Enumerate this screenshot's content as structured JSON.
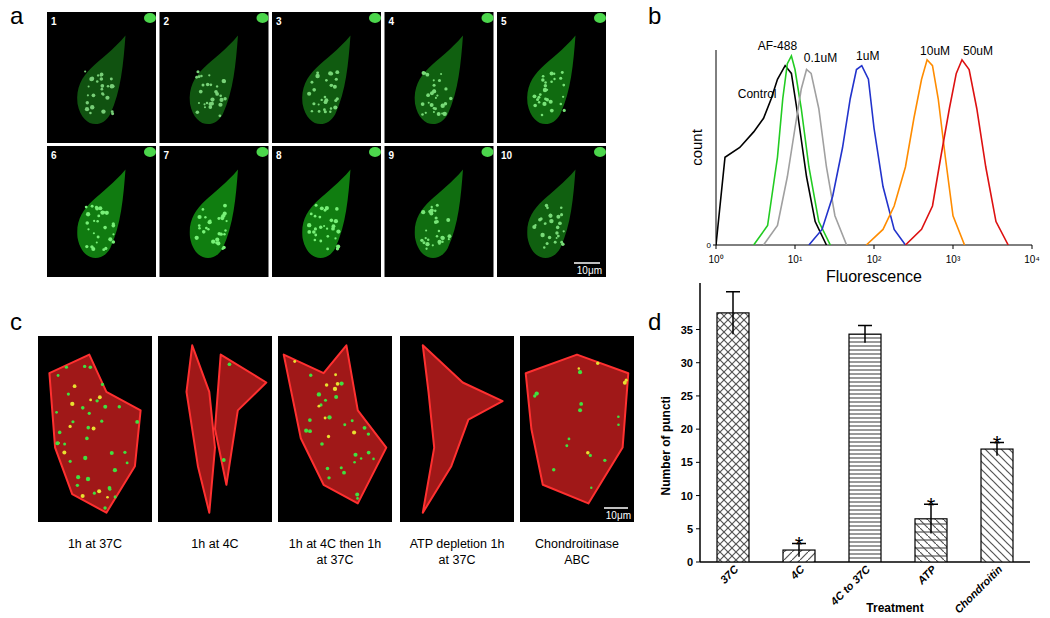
{
  "figure": {
    "panel_labels": [
      "a",
      "b",
      "c",
      "d"
    ]
  },
  "panel_a": {
    "frames": [
      "1",
      "2",
      "3",
      "4",
      "5",
      "6",
      "7",
      "8",
      "9",
      "10"
    ],
    "scale_bar": "10μm"
  },
  "panel_c": {
    "captions": [
      [
        "1h at 37C"
      ],
      [
        "1h at 4C"
      ],
      [
        "1h at 4C then 1h",
        "at 37C"
      ],
      [
        "ATP depletion 1h",
        "at 37C"
      ],
      [
        "Chondroitinase",
        "ABC"
      ]
    ],
    "scale_bar": "10μm"
  },
  "chart_data": [
    {
      "type": "line",
      "x_label": "Fluorescence",
      "y_label": "count",
      "log": "x",
      "xlim": [
        1,
        10000
      ],
      "xticks": [
        {
          "value": 1,
          "label": "10⁰"
        },
        {
          "value": 10,
          "label": "10¹"
        },
        {
          "value": 100,
          "label": "10²"
        },
        {
          "value": 1000,
          "label": "10³"
        },
        {
          "value": 10000,
          "label": "10⁴"
        }
      ],
      "ylim": [
        0,
        100
      ],
      "yticks": [
        0
      ],
      "series": [
        {
          "name": "Control",
          "color": "#000000",
          "x": [
            1,
            1.3,
            2,
            3,
            4,
            5,
            6,
            7.5,
            9,
            11,
            14,
            18,
            25
          ],
          "values": [
            0,
            45,
            50,
            58,
            65,
            75,
            85,
            92,
            88,
            65,
            35,
            12,
            0
          ]
        },
        {
          "name": "AF-488",
          "color": "#22cc22",
          "x": [
            3,
            4.5,
            6,
            7,
            8,
            9,
            10,
            12,
            15,
            20,
            28
          ],
          "values": [
            0,
            10,
            45,
            75,
            93,
            97,
            90,
            70,
            40,
            12,
            0
          ]
        },
        {
          "name": "0.1uM",
          "color": "#a0a0a0",
          "x": [
            4,
            6,
            8,
            10,
            12,
            14,
            16,
            20,
            25,
            32,
            45
          ],
          "values": [
            0,
            10,
            35,
            60,
            80,
            90,
            88,
            70,
            40,
            15,
            0
          ]
        },
        {
          "name": "1uM",
          "color": "#2233cc",
          "x": [
            15,
            22,
            30,
            40,
            50,
            60,
            70,
            85,
            100,
            130,
            180,
            250
          ],
          "values": [
            0,
            8,
            25,
            50,
            75,
            90,
            92,
            85,
            60,
            30,
            8,
            0
          ]
        },
        {
          "name": "10uM",
          "color": "#ff8c00",
          "x": [
            80,
            130,
            180,
            250,
            320,
            400,
            470,
            550,
            650,
            800,
            1000,
            1400
          ],
          "values": [
            0,
            8,
            20,
            40,
            65,
            85,
            95,
            92,
            75,
            45,
            15,
            0
          ]
        },
        {
          "name": "50uM",
          "color": "#dd1111",
          "x": [
            250,
            400,
            550,
            700,
            900,
            1100,
            1300,
            1600,
            2000,
            2600,
            3500,
            5000
          ],
          "values": [
            0,
            8,
            20,
            45,
            70,
            88,
            95,
            90,
            70,
            40,
            12,
            0
          ]
        }
      ]
    },
    {
      "type": "bar",
      "x_label": "Treatment",
      "y_label": "Number of puncti",
      "color": "#555555",
      "categories": [
        "37C",
        "4C",
        "4C to 37C",
        "ATP",
        "Chondroitin"
      ],
      "values": [
        37.5,
        1.8,
        34.3,
        6.5,
        17
      ],
      "errors": [
        3.2,
        1.0,
        1.3,
        2.2,
        1.0
      ],
      "ylim": [
        0,
        42
      ],
      "yticks": [
        0,
        5,
        10,
        15,
        20,
        25,
        30,
        35
      ],
      "annotations": [
        {
          "category": "4C",
          "text": "*"
        },
        {
          "category": "ATP",
          "text": "*"
        },
        {
          "category": "Chondroitin",
          "text": "*"
        }
      ]
    }
  ]
}
